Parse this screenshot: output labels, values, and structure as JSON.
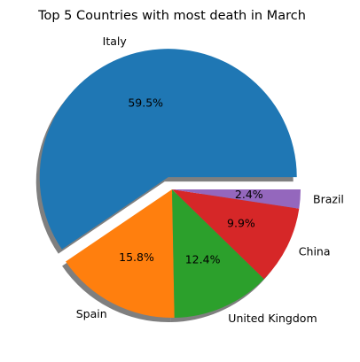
{
  "chart_data": {
    "type": "pie",
    "title": "Top 5 Countries with most death in March",
    "categories": [
      "Italy",
      "Spain",
      "United Kingdom",
      "China",
      "Brazil"
    ],
    "values": [
      59.5,
      15.8,
      12.4,
      9.9,
      2.4
    ],
    "value_labels": [
      "59.5%",
      "15.8%",
      "12.4%",
      "9.9%",
      "2.4%"
    ],
    "colors": [
      "#1f77b4",
      "#ff7f0e",
      "#2ca02c",
      "#d62728",
      "#9467bd"
    ],
    "start_angle_deg": 0,
    "direction": "counterclockwise",
    "exploded": [
      "Italy"
    ],
    "shadow": true,
    "legend": "none"
  }
}
